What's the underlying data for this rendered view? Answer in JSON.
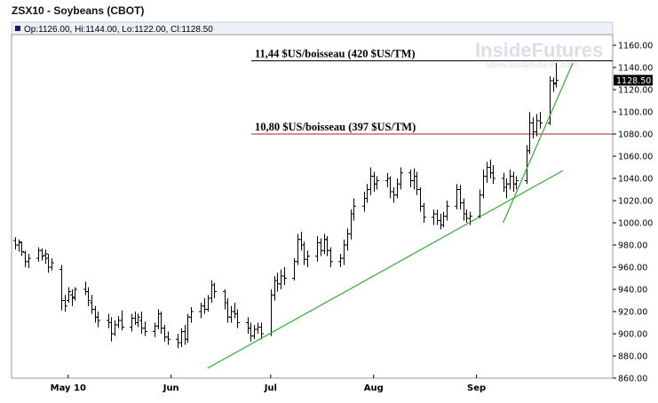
{
  "chart_data": {
    "type": "ohlc",
    "title": "ZSX10 - Soybeans (CBOT)",
    "ohlc_summary": {
      "open_label": "Op:1126.00",
      "high_label": "Hi:1144.00",
      "low_label": "Lo:1122.00",
      "close_label": "Cl:1128.50"
    },
    "last_price_label": "1128.50",
    "watermark": {
      "brand": "InsideFutures",
      "url": "www.insidefutures.com"
    },
    "y_axis": {
      "min": 860,
      "max": 1170,
      "ticks": [
        "1160.00",
        "1140.00",
        "1120.00",
        "1100.00",
        "1080.00",
        "1060.00",
        "1040.00",
        "1020.00",
        "1000.00",
        "980.00",
        "960.00",
        "940.00",
        "920.00",
        "900.00",
        "880.00",
        "860.00"
      ]
    },
    "x_axis": {
      "months": [
        {
          "label": "May 10",
          "day": 16
        },
        {
          "label": "Jun",
          "day": 47
        },
        {
          "label": "Jul",
          "day": 77
        },
        {
          "label": "Aug",
          "day": 108
        },
        {
          "label": "Sep",
          "day": 139
        }
      ],
      "day_min": 0,
      "day_max": 172
    },
    "horizontal_levels": [
      {
        "value": 1146,
        "color": "#000000",
        "label": "11,44 $US/boisseau (420 $US/TM)"
      },
      {
        "value": 1080,
        "color": "#aa2222",
        "label": "10,80 $US/boisseau (397 $US/TM)"
      }
    ],
    "trendlines": [
      {
        "color": "#33aa33",
        "from": {
          "day": 58,
          "price": 869
        },
        "to": {
          "day": 165,
          "price": 1047
        }
      },
      {
        "color": "#33aa33",
        "from": {
          "day": 147,
          "price": 1000
        },
        "to": {
          "day": 168,
          "price": 1144
        }
      }
    ],
    "bars_daily": [
      {
        "day": 0,
        "o": 984,
        "h": 987,
        "l": 976,
        "c": 980
      },
      {
        "day": 1,
        "o": 980,
        "h": 985,
        "l": 974,
        "c": 983
      },
      {
        "day": 2,
        "o": 982,
        "h": 983,
        "l": 970,
        "c": 974
      },
      {
        "day": 3,
        "o": 973,
        "h": 975,
        "l": 960,
        "c": 965
      },
      {
        "day": 4,
        "o": 965,
        "h": 972,
        "l": 959,
        "c": 968
      },
      {
        "day": 7,
        "o": 968,
        "h": 978,
        "l": 965,
        "c": 975
      },
      {
        "day": 8,
        "o": 975,
        "h": 977,
        "l": 966,
        "c": 970
      },
      {
        "day": 9,
        "o": 971,
        "h": 976,
        "l": 963,
        "c": 972
      },
      {
        "day": 10,
        "o": 968,
        "h": 972,
        "l": 955,
        "c": 960
      },
      {
        "day": 11,
        "o": 960,
        "h": 968,
        "l": 957,
        "c": 964
      },
      {
        "day": 14,
        "o": 958,
        "h": 962,
        "l": 921,
        "c": 930
      },
      {
        "day": 15,
        "o": 930,
        "h": 935,
        "l": 920,
        "c": 925
      },
      {
        "day": 16,
        "o": 930,
        "h": 942,
        "l": 928,
        "c": 938
      },
      {
        "day": 17,
        "o": 935,
        "h": 940,
        "l": 925,
        "c": 932
      },
      {
        "day": 18,
        "o": 933,
        "h": 942,
        "l": 930,
        "c": 940
      },
      {
        "day": 21,
        "o": 940,
        "h": 947,
        "l": 935,
        "c": 938
      },
      {
        "day": 22,
        "o": 938,
        "h": 942,
        "l": 925,
        "c": 930
      },
      {
        "day": 23,
        "o": 928,
        "h": 935,
        "l": 918,
        "c": 922
      },
      {
        "day": 24,
        "o": 922,
        "h": 925,
        "l": 910,
        "c": 915
      },
      {
        "day": 25,
        "o": 915,
        "h": 920,
        "l": 906,
        "c": 912
      },
      {
        "day": 28,
        "o": 912,
        "h": 918,
        "l": 905,
        "c": 910
      },
      {
        "day": 29,
        "o": 910,
        "h": 915,
        "l": 893,
        "c": 900
      },
      {
        "day": 30,
        "o": 900,
        "h": 912,
        "l": 898,
        "c": 908
      },
      {
        "day": 31,
        "o": 908,
        "h": 916,
        "l": 905,
        "c": 912
      },
      {
        "day": 32,
        "o": 912,
        "h": 921,
        "l": 903,
        "c": 906
      },
      {
        "day": 35,
        "o": 906,
        "h": 918,
        "l": 902,
        "c": 914
      },
      {
        "day": 36,
        "o": 914,
        "h": 920,
        "l": 908,
        "c": 910
      },
      {
        "day": 37,
        "o": 910,
        "h": 918,
        "l": 906,
        "c": 915
      },
      {
        "day": 38,
        "o": 912,
        "h": 920,
        "l": 900,
        "c": 905
      },
      {
        "day": 39,
        "o": 905,
        "h": 911,
        "l": 898,
        "c": 902
      },
      {
        "day": 42,
        "o": 902,
        "h": 910,
        "l": 897,
        "c": 907
      },
      {
        "day": 43,
        "o": 907,
        "h": 922,
        "l": 904,
        "c": 918
      },
      {
        "day": 44,
        "o": 918,
        "h": 920,
        "l": 900,
        "c": 905
      },
      {
        "day": 45,
        "o": 905,
        "h": 908,
        "l": 893,
        "c": 897
      },
      {
        "day": 46,
        "o": 897,
        "h": 902,
        "l": 890,
        "c": 895
      },
      {
        "day": 49,
        "o": 895,
        "h": 900,
        "l": 887,
        "c": 892
      },
      {
        "day": 50,
        "o": 892,
        "h": 905,
        "l": 888,
        "c": 902
      },
      {
        "day": 51,
        "o": 902,
        "h": 908,
        "l": 890,
        "c": 895
      },
      {
        "day": 52,
        "o": 895,
        "h": 918,
        "l": 892,
        "c": 915
      },
      {
        "day": 53,
        "o": 915,
        "h": 924,
        "l": 910,
        "c": 920
      },
      {
        "day": 56,
        "o": 920,
        "h": 928,
        "l": 914,
        "c": 925
      },
      {
        "day": 57,
        "o": 925,
        "h": 932,
        "l": 918,
        "c": 922
      },
      {
        "day": 58,
        "o": 922,
        "h": 935,
        "l": 920,
        "c": 932
      },
      {
        "day": 59,
        "o": 932,
        "h": 948,
        "l": 928,
        "c": 944
      },
      {
        "day": 60,
        "o": 944,
        "h": 946,
        "l": 932,
        "c": 938
      },
      {
        "day": 63,
        "o": 938,
        "h": 940,
        "l": 922,
        "c": 928
      },
      {
        "day": 64,
        "o": 928,
        "h": 932,
        "l": 910,
        "c": 915
      },
      {
        "day": 65,
        "o": 915,
        "h": 925,
        "l": 910,
        "c": 920
      },
      {
        "day": 66,
        "o": 920,
        "h": 928,
        "l": 914,
        "c": 918
      },
      {
        "day": 67,
        "o": 918,
        "h": 922,
        "l": 905,
        "c": 910
      },
      {
        "day": 70,
        "o": 910,
        "h": 915,
        "l": 900,
        "c": 905
      },
      {
        "day": 71,
        "o": 905,
        "h": 910,
        "l": 893,
        "c": 898
      },
      {
        "day": 72,
        "o": 898,
        "h": 908,
        "l": 895,
        "c": 904
      },
      {
        "day": 73,
        "o": 904,
        "h": 910,
        "l": 900,
        "c": 906
      },
      {
        "day": 74,
        "o": 906,
        "h": 910,
        "l": 895,
        "c": 900
      },
      {
        "day": 77,
        "o": 900,
        "h": 940,
        "l": 898,
        "c": 935
      },
      {
        "day": 78,
        "o": 935,
        "h": 952,
        "l": 930,
        "c": 948
      },
      {
        "day": 79,
        "o": 948,
        "h": 955,
        "l": 938,
        "c": 945
      },
      {
        "day": 80,
        "o": 945,
        "h": 958,
        "l": 940,
        "c": 952
      },
      {
        "day": 81,
        "o": 952,
        "h": 960,
        "l": 944,
        "c": 950
      },
      {
        "day": 84,
        "o": 950,
        "h": 968,
        "l": 948,
        "c": 965
      },
      {
        "day": 85,
        "o": 965,
        "h": 990,
        "l": 962,
        "c": 985
      },
      {
        "day": 86,
        "o": 985,
        "h": 992,
        "l": 975,
        "c": 980
      },
      {
        "day": 87,
        "o": 980,
        "h": 983,
        "l": 962,
        "c": 967
      },
      {
        "day": 88,
        "o": 967,
        "h": 975,
        "l": 960,
        "c": 970
      },
      {
        "day": 91,
        "o": 970,
        "h": 988,
        "l": 965,
        "c": 982
      },
      {
        "day": 92,
        "o": 982,
        "h": 986,
        "l": 970,
        "c": 975
      },
      {
        "day": 93,
        "o": 975,
        "h": 990,
        "l": 972,
        "c": 985
      },
      {
        "day": 94,
        "o": 985,
        "h": 988,
        "l": 970,
        "c": 975
      },
      {
        "day": 95,
        "o": 975,
        "h": 978,
        "l": 960,
        "c": 965
      },
      {
        "day": 98,
        "o": 965,
        "h": 972,
        "l": 960,
        "c": 968
      },
      {
        "day": 99,
        "o": 968,
        "h": 985,
        "l": 962,
        "c": 980
      },
      {
        "day": 100,
        "o": 980,
        "h": 995,
        "l": 975,
        "c": 990
      },
      {
        "day": 101,
        "o": 990,
        "h": 1012,
        "l": 985,
        "c": 1008
      },
      {
        "day": 102,
        "o": 1008,
        "h": 1022,
        "l": 1002,
        "c": 1015
      },
      {
        "day": 105,
        "o": 1015,
        "h": 1028,
        "l": 1010,
        "c": 1022
      },
      {
        "day": 106,
        "o": 1022,
        "h": 1035,
        "l": 1018,
        "c": 1030
      },
      {
        "day": 107,
        "o": 1030,
        "h": 1050,
        "l": 1025,
        "c": 1042
      },
      {
        "day": 108,
        "o": 1042,
        "h": 1046,
        "l": 1028,
        "c": 1035
      },
      {
        "day": 109,
        "o": 1035,
        "h": 1042,
        "l": 1030,
        "c": 1038
      },
      {
        "day": 112,
        "o": 1038,
        "h": 1045,
        "l": 1032,
        "c": 1040
      },
      {
        "day": 113,
        "o": 1040,
        "h": 1042,
        "l": 1022,
        "c": 1028
      },
      {
        "day": 114,
        "o": 1028,
        "h": 1032,
        "l": 1018,
        "c": 1025
      },
      {
        "day": 115,
        "o": 1025,
        "h": 1040,
        "l": 1022,
        "c": 1035
      },
      {
        "day": 116,
        "o": 1035,
        "h": 1050,
        "l": 1030,
        "c": 1045
      },
      {
        "day": 119,
        "o": 1045,
        "h": 1048,
        "l": 1032,
        "c": 1038
      },
      {
        "day": 120,
        "o": 1038,
        "h": 1049,
        "l": 1030,
        "c": 1042
      },
      {
        "day": 121,
        "o": 1042,
        "h": 1046,
        "l": 1025,
        "c": 1030
      },
      {
        "day": 122,
        "o": 1030,
        "h": 1032,
        "l": 1010,
        "c": 1015
      },
      {
        "day": 123,
        "o": 1015,
        "h": 1018,
        "l": 1000,
        "c": 1005
      },
      {
        "day": 126,
        "o": 1005,
        "h": 1012,
        "l": 998,
        "c": 1008
      },
      {
        "day": 127,
        "o": 1008,
        "h": 1012,
        "l": 998,
        "c": 1002
      },
      {
        "day": 128,
        "o": 1002,
        "h": 1008,
        "l": 994,
        "c": 998
      },
      {
        "day": 129,
        "o": 998,
        "h": 1010,
        "l": 996,
        "c": 1006
      },
      {
        "day": 130,
        "o": 1006,
        "h": 1020,
        "l": 1002,
        "c": 1015
      },
      {
        "day": 133,
        "o": 1015,
        "h": 1035,
        "l": 1012,
        "c": 1030
      },
      {
        "day": 134,
        "o": 1030,
        "h": 1034,
        "l": 1012,
        "c": 1018
      },
      {
        "day": 135,
        "o": 1018,
        "h": 1022,
        "l": 1002,
        "c": 1008
      },
      {
        "day": 136,
        "o": 1008,
        "h": 1012,
        "l": 1000,
        "c": 1004
      },
      {
        "day": 137,
        "o": 1004,
        "h": 1010,
        "l": 998,
        "c": 1006
      },
      {
        "day": 140,
        "o": 1006,
        "h": 1030,
        "l": 1004,
        "c": 1025
      },
      {
        "day": 141,
        "o": 1025,
        "h": 1048,
        "l": 1022,
        "c": 1042
      },
      {
        "day": 142,
        "o": 1042,
        "h": 1055,
        "l": 1036,
        "c": 1050
      },
      {
        "day": 143,
        "o": 1050,
        "h": 1057,
        "l": 1040,
        "c": 1045
      },
      {
        "day": 144,
        "o": 1045,
        "h": 1052,
        "l": 1035,
        "c": 1040
      },
      {
        "day": 147,
        "o": 1040,
        "h": 1045,
        "l": 1028,
        "c": 1032
      },
      {
        "day": 148,
        "o": 1032,
        "h": 1040,
        "l": 1022,
        "c": 1035
      },
      {
        "day": 149,
        "o": 1035,
        "h": 1048,
        "l": 1030,
        "c": 1042
      },
      {
        "day": 150,
        "o": 1042,
        "h": 1046,
        "l": 1028,
        "c": 1035
      },
      {
        "day": 151,
        "o": 1035,
        "h": 1042,
        "l": 1030,
        "c": 1038
      },
      {
        "day": 154,
        "o": 1038,
        "h": 1070,
        "l": 1035,
        "c": 1065
      },
      {
        "day": 155,
        "o": 1065,
        "h": 1100,
        "l": 1062,
        "c": 1090
      },
      {
        "day": 156,
        "o": 1090,
        "h": 1095,
        "l": 1076,
        "c": 1082
      },
      {
        "day": 157,
        "o": 1082,
        "h": 1098,
        "l": 1078,
        "c": 1092
      },
      {
        "day": 158,
        "o": 1092,
        "h": 1100,
        "l": 1085,
        "c": 1090
      },
      {
        "day": 161,
        "o": 1090,
        "h": 1132,
        "l": 1088,
        "c": 1128
      },
      {
        "day": 162,
        "o": 1128,
        "h": 1131,
        "l": 1118,
        "c": 1125
      },
      {
        "day": 163,
        "o": 1126,
        "h": 1144,
        "l": 1122,
        "c": 1128.5
      }
    ]
  }
}
